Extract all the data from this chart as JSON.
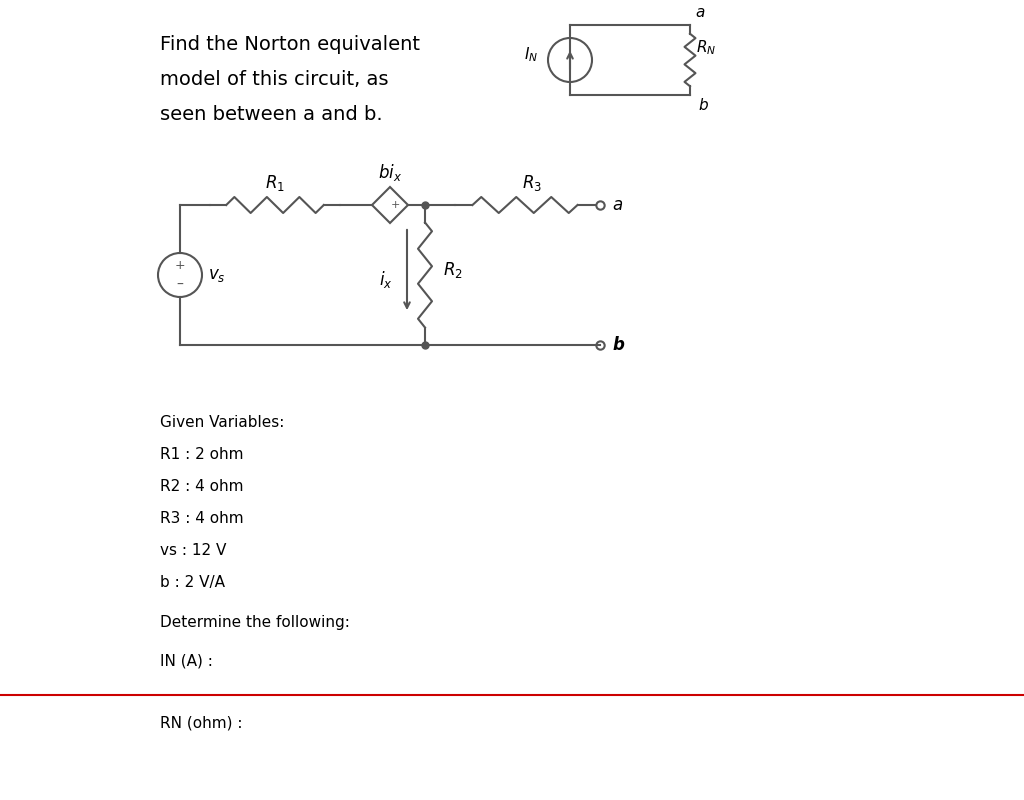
{
  "title_line1": "Find the Norton equivalent",
  "title_line2": "model of this circuit, as",
  "title_line3": "seen between a and b.",
  "given_header": "Given Variables:",
  "given_vars": [
    "R1 : 2 ohm",
    "R2 : 4 ohm",
    "R3 : 4 ohm",
    "vs : 12 V",
    "b : 2 V/A"
  ],
  "determine": "Determine the following:",
  "in_label": "IN (A) :",
  "rn_label": "RN (ohm) :",
  "bg_color": "#ffffff",
  "line_color": "#000000",
  "circuit_color": "#555555",
  "red_line_color": "#cc0000"
}
